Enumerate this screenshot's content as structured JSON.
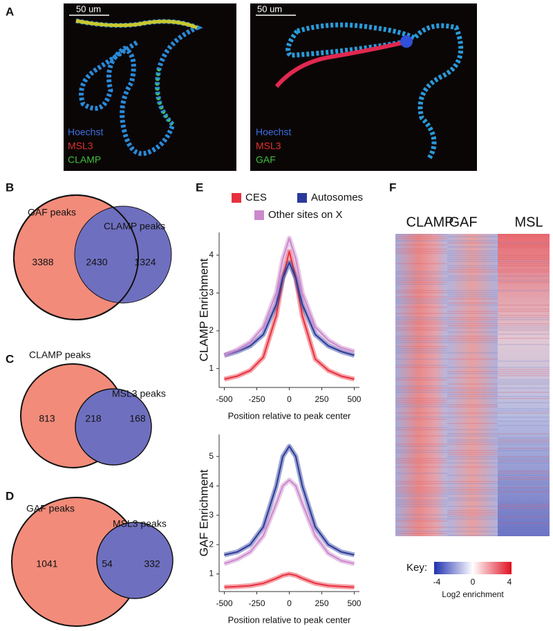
{
  "panel_labels": [
    "A",
    "B",
    "C",
    "D",
    "E",
    "F"
  ],
  "panel_a": {
    "scale_bars": [
      "50 um",
      "50 um"
    ],
    "left_legend": [
      "Hoechst",
      "MSL3",
      "CLAMP"
    ],
    "right_legend": [
      "Hoechst",
      "MSL3",
      "GAF"
    ]
  },
  "venns": [
    {
      "left_label": "GAF peaks",
      "right_label": "CLAMP peaks",
      "left_only": "3388",
      "overlap": "2430",
      "right_only": "1324"
    },
    {
      "left_label": "CLAMP peaks",
      "right_label": "MSL3 peaks",
      "left_only": "813",
      "overlap": "218",
      "right_only": "168"
    },
    {
      "left_label": "GAF peaks",
      "right_label": "MSL3 peaks",
      "left_only": "1041",
      "overlap": "54",
      "right_only": "332"
    }
  ],
  "chart_data": [
    {
      "type": "line",
      "ylabel": "CLAMP Enrichment",
      "xlabel": "Position relative to peak center",
      "x": [
        -500,
        -400,
        -300,
        -200,
        -100,
        -50,
        0,
        50,
        100,
        200,
        300,
        400,
        500
      ],
      "xlim": [
        -540,
        540
      ],
      "xticks": [
        -500,
        -250,
        0,
        250,
        500
      ],
      "ylim": [
        0.5,
        4.6
      ],
      "yticks": [
        1,
        2,
        3,
        4
      ],
      "series": [
        {
          "name": "CES",
          "color": "#e8303f",
          "values": [
            0.72,
            0.8,
            0.95,
            1.3,
            2.4,
            3.4,
            4.1,
            3.4,
            2.4,
            1.25,
            0.95,
            0.8,
            0.72
          ]
        },
        {
          "name": "Autosomes",
          "color": "#2b3a9a",
          "values": [
            1.35,
            1.45,
            1.6,
            1.9,
            2.7,
            3.4,
            3.8,
            3.4,
            2.7,
            1.9,
            1.6,
            1.45,
            1.35
          ]
        },
        {
          "name": "Other sites on X",
          "color": "#cc88cc",
          "values": [
            1.35,
            1.5,
            1.7,
            2.1,
            3.0,
            3.9,
            4.45,
            3.9,
            3.0,
            2.1,
            1.75,
            1.55,
            1.45
          ]
        }
      ]
    },
    {
      "type": "line",
      "ylabel": "GAF Enrichment",
      "xlabel": "Position relative to peak center",
      "x": [
        -500,
        -400,
        -300,
        -200,
        -100,
        -50,
        0,
        50,
        100,
        200,
        300,
        400,
        500
      ],
      "xlim": [
        -540,
        540
      ],
      "xticks": [
        -500,
        -250,
        0,
        250,
        500
      ],
      "ylim": [
        0.4,
        5.75
      ],
      "yticks": [
        1,
        2,
        3,
        4,
        5
      ],
      "series": [
        {
          "color": "#e8303f",
          "values": [
            0.55,
            0.57,
            0.6,
            0.68,
            0.85,
            0.95,
            1.0,
            0.95,
            0.85,
            0.68,
            0.6,
            0.57,
            0.55
          ]
        },
        {
          "color": "#2b3a9a",
          "values": [
            1.65,
            1.75,
            2.0,
            2.6,
            4.0,
            5.0,
            5.35,
            5.0,
            4.0,
            2.6,
            2.0,
            1.75,
            1.65
          ]
        },
        {
          "color": "#cc88cc",
          "values": [
            1.35,
            1.5,
            1.75,
            2.3,
            3.4,
            4.0,
            4.2,
            4.0,
            3.4,
            2.3,
            1.7,
            1.45,
            1.35
          ]
        }
      ]
    }
  ],
  "heatmap": {
    "columns": [
      "CLAMP",
      "GAF",
      "MSL"
    ],
    "key_title": "Key:",
    "key_ticks": [
      "-4",
      "0",
      "4"
    ],
    "key_label": "Log2 enrichment"
  }
}
